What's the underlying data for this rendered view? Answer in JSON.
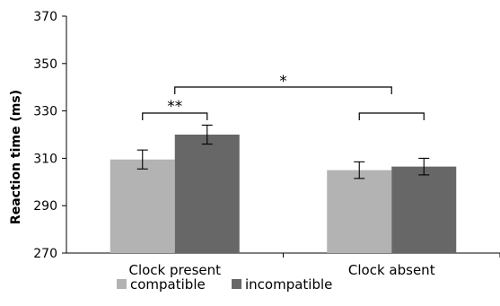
{
  "chart_data": {
    "type": "bar",
    "title": "",
    "xlabel": "",
    "ylabel": "Reaction time (ms)",
    "ylim": [
      270,
      370
    ],
    "yticks": [
      270,
      290,
      310,
      330,
      350,
      370
    ],
    "categories": [
      "Clock present",
      "Clock absent"
    ],
    "series": [
      {
        "name": "compatible",
        "color": "#b3b3b3",
        "values": [
          309.5,
          305
        ],
        "errors": [
          4,
          3.5
        ]
      },
      {
        "name": "incompatible",
        "color": "#676767",
        "values": [
          320,
          306.5
        ],
        "errors": [
          4,
          3.5
        ]
      }
    ],
    "legend_position": "bottom",
    "grid": false,
    "significance": [
      {
        "label": "**",
        "between": "compatible vs incompatible within Clock present"
      },
      {
        "label": "*",
        "between": "Clock present vs Clock absent"
      }
    ]
  }
}
